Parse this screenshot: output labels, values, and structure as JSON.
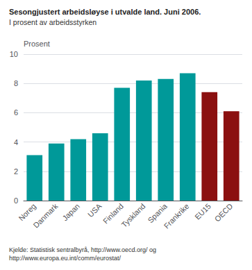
{
  "chart_data": {
    "type": "bar",
    "title": "Sesongjustert arbeidsløyse i utvalde land. Juni 2006.",
    "subtitle": "I prosent av arbeidsstyrken",
    "ylabel": "Prosent",
    "categories": [
      "Noreg",
      "Danmark",
      "Japan",
      "USA",
      "Finland",
      "Tyskland",
      "Spania",
      "Frankrike",
      "EU15",
      "OECD"
    ],
    "values": [
      3.1,
      3.9,
      4.2,
      4.6,
      7.7,
      8.2,
      8.3,
      8.7,
      7.4,
      6.1
    ],
    "colors": [
      "#009999",
      "#009999",
      "#009999",
      "#009999",
      "#009999",
      "#009999",
      "#009999",
      "#009999",
      "#8B1010",
      "#8B1010"
    ],
    "ylim": [
      0,
      10
    ],
    "yticks": [
      0,
      2,
      4,
      6,
      8,
      10
    ],
    "grid": true,
    "annotations": [
      "Kjelde: Statistisk sentralbyrå, http://www.oecd.org/ og\nhttp://www.europa.eu.int/comm/eurostat/"
    ]
  }
}
